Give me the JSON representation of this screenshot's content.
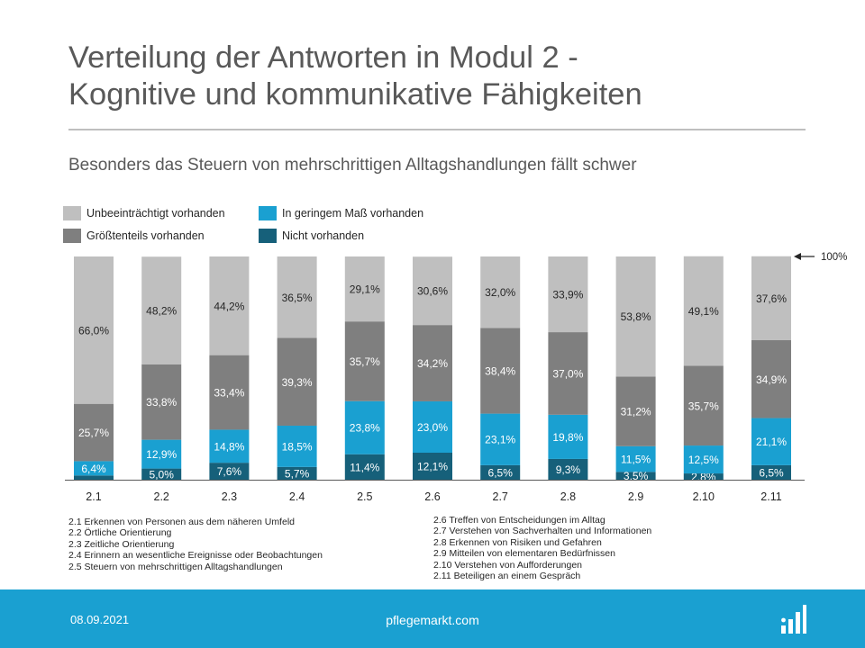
{
  "header": {
    "title_line1": "Verteilung der Antworten in Modul 2 -",
    "title_line2": "Kognitive und kommunikative Fähigkeiten",
    "subtitle": "Besonders das Steuern von mehrschrittigen Alltagshandlungen fällt schwer"
  },
  "legend": [
    {
      "label": "Unbeeinträchtigt vorhanden",
      "color": "#bfbfbf"
    },
    {
      "label": "In geringem Maß vorhanden",
      "color": "#1aa0d1"
    },
    {
      "label": "Größtenteils vorhanden",
      "color": "#7f7f7f"
    },
    {
      "label": "Nicht vorhanden",
      "color": "#16607a"
    }
  ],
  "chart_data": {
    "type": "bar",
    "stacked": true,
    "percent": true,
    "categories": [
      "2.1",
      "2.2",
      "2.3",
      "2.4",
      "2.5",
      "2.6",
      "2.7",
      "2.8",
      "2.9",
      "2.10",
      "2.11"
    ],
    "series": [
      {
        "name": "Nicht vorhanden",
        "color": "#16607a",
        "values": [
          1.9,
          5.0,
          7.6,
          5.7,
          11.4,
          12.1,
          6.5,
          9.3,
          3.5,
          2.8,
          6.5
        ],
        "labels": [
          "",
          "5,0%",
          "7,6%",
          "5,7%",
          "11,4%",
          "12,1%",
          "6,5%",
          "9,3%",
          "3,5%",
          "2,8%",
          "6,5%"
        ]
      },
      {
        "name": "In geringem Maß vorhanden",
        "color": "#1aa0d1",
        "values": [
          6.4,
          12.9,
          14.8,
          18.5,
          23.8,
          23.0,
          23.1,
          19.8,
          11.5,
          12.5,
          21.1
        ],
        "labels": [
          "6,4%",
          "12,9%",
          "14,8%",
          "18,5%",
          "23,8%",
          "23,0%",
          "23,1%",
          "19,8%",
          "11,5%",
          "12,5%",
          "21,1%"
        ]
      },
      {
        "name": "Größtenteils vorhanden",
        "color": "#7f7f7f",
        "values": [
          25.7,
          33.8,
          33.4,
          39.3,
          35.7,
          34.2,
          38.4,
          37.0,
          31.2,
          35.7,
          34.9
        ],
        "labels": [
          "25,7%",
          "33,8%",
          "33,4%",
          "39,3%",
          "35,7%",
          "34,2%",
          "38,4%",
          "37,0%",
          "31,2%",
          "35,7%",
          "34,9%"
        ]
      },
      {
        "name": "Unbeeinträchtigt vorhanden",
        "color": "#bfbfbf",
        "values": [
          66.0,
          48.2,
          44.2,
          36.5,
          29.1,
          30.6,
          32.0,
          33.9,
          53.8,
          49.1,
          37.6
        ],
        "labels": [
          "66,0%",
          "48,2%",
          "44,2%",
          "36,5%",
          "29,1%",
          "30,6%",
          "32,0%",
          "33,9%",
          "53,8%",
          "49,1%",
          "37,6%"
        ]
      }
    ],
    "ylim": [
      0,
      100
    ],
    "reference_label": "100%",
    "grid": false
  },
  "notes_left": [
    "2.1 Erkennen von Personen aus dem näheren Umfeld",
    "2.2 Örtliche Orientierung",
    "2.3 Zeitliche Orientierung",
    "2.4 Erinnern an wesentliche Ereignisse oder Beobachtungen",
    "2.5 Steuern von mehrschrittigen Alltagshandlungen"
  ],
  "notes_right": [
    "2.6 Treffen von Entscheidungen im Alltag",
    "2.7 Verstehen von Sachverhalten und Informationen",
    "2.8 Erkennen von Risiken und Gefahren",
    "2.9 Mitteilen von elementaren Bedürfnissen",
    "2.10 Verstehen von Aufforderungen",
    "2.11 Beteiligen an einem Gespräch"
  ],
  "footer": {
    "date": "08.09.2021",
    "site": "pflegemarkt.com",
    "logo_icon": "bar-chart-logo-icon",
    "background": "#1aa0d1"
  }
}
